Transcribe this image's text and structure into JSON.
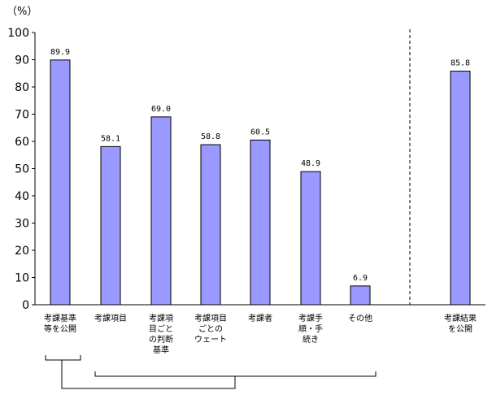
{
  "chart_data": {
    "type": "bar",
    "ylabel": "（%）",
    "ylim": [
      0,
      100
    ],
    "yticks": [
      0,
      10,
      20,
      30,
      40,
      50,
      60,
      70,
      80,
      90,
      100
    ],
    "bar_color": "#9999ff",
    "categories": [
      [
        "考課基準",
        "等を公開"
      ],
      [
        "考課項目"
      ],
      [
        "考課項",
        "目ごと",
        "の判断",
        "基準"
      ],
      [
        "考課項目",
        "ごとの",
        "ウェート"
      ],
      [
        "考課者"
      ],
      [
        "考課手",
        "順・手",
        "続き"
      ],
      [
        "その他"
      ],
      [
        "考課結果",
        "を公開"
      ]
    ],
    "values": [
      89.9,
      58.1,
      69.0,
      58.8,
      60.5,
      48.9,
      6.9,
      85.8
    ],
    "value_labels": [
      "89.9",
      "58.1",
      "69.0",
      "58.8",
      "60.5",
      "48.9",
      "6.9",
      "85.8"
    ]
  }
}
